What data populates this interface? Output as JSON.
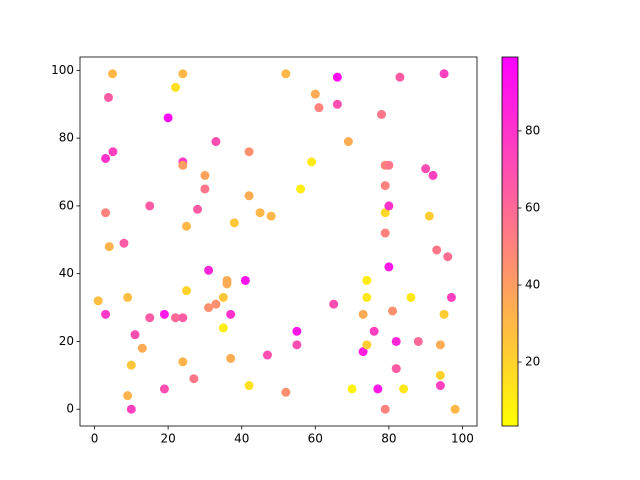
{
  "chart_data": {
    "type": "scatter",
    "x": [
      4.9,
      24,
      3.8,
      22,
      52,
      66,
      60,
      61,
      66,
      83,
      95,
      78,
      20,
      33,
      3,
      5,
      24,
      24,
      42,
      59,
      69,
      79,
      80,
      90,
      92,
      30,
      30,
      42,
      56,
      79,
      15,
      28,
      45,
      48,
      3,
      25,
      38,
      79,
      80,
      91,
      4,
      8,
      79,
      93,
      96,
      31,
      41,
      80,
      36,
      36,
      25,
      1,
      9,
      35,
      31,
      33,
      3,
      15,
      22,
      24,
      19,
      37,
      35,
      11,
      13,
      10,
      24,
      37,
      47,
      55,
      55,
      65,
      74,
      74,
      73,
      86,
      81,
      97,
      95,
      76,
      73,
      74,
      82,
      88,
      94,
      82,
      77,
      84,
      70,
      94,
      94,
      98,
      79,
      9,
      10,
      19,
      27,
      42,
      52
    ],
    "y": [
      99,
      99,
      92,
      95,
      99,
      98,
      93,
      89,
      90,
      98,
      99,
      87,
      86,
      79,
      74,
      76,
      73,
      72,
      76,
      73,
      79,
      72,
      72,
      71,
      69,
      69,
      65,
      63,
      65,
      66,
      60,
      59,
      58,
      57,
      58,
      54,
      55,
      58,
      60,
      57,
      48,
      49,
      52,
      47,
      45,
      41,
      38,
      42,
      38,
      37,
      35,
      32,
      33,
      33,
      30,
      31,
      28,
      27,
      27,
      27,
      28,
      28,
      24,
      22,
      18,
      13,
      14,
      15,
      16,
      23,
      19,
      31,
      38,
      33,
      28,
      33,
      29,
      33,
      28,
      23,
      17,
      19,
      20,
      20,
      19,
      12,
      6,
      6,
      6,
      10,
      7,
      0,
      0,
      4,
      0,
      6,
      9,
      7,
      5
    ],
    "c": [
      30,
      30,
      65,
      15,
      30,
      95,
      35,
      50,
      70,
      65,
      75,
      55,
      95,
      70,
      80,
      75,
      78,
      40,
      45,
      12,
      35,
      50,
      55,
      70,
      75,
      38,
      55,
      35,
      10,
      50,
      65,
      65,
      30,
      30,
      50,
      30,
      25,
      18,
      80,
      22,
      32,
      65,
      50,
      55,
      58,
      85,
      92,
      90,
      35,
      35,
      20,
      28,
      28,
      25,
      45,
      45,
      78,
      65,
      60,
      65,
      90,
      80,
      10,
      70,
      35,
      25,
      32,
      35,
      70,
      90,
      70,
      70,
      10,
      12,
      35,
      12,
      45,
      75,
      22,
      75,
      88,
      22,
      85,
      60,
      35,
      65,
      90,
      12,
      8,
      20,
      75,
      30,
      50,
      32,
      75,
      70,
      55,
      15,
      45
    ],
    "colormap": "spring_r",
    "clim": [
      3.4,
      99.2
    ],
    "xlim": [
      -3.95,
      103.95
    ],
    "ylim": [
      -4.95,
      103.95
    ],
    "xticks": [
      0,
      20,
      40,
      60,
      80,
      100
    ],
    "yticks": [
      0,
      20,
      40,
      60,
      80,
      100
    ],
    "cticks": [
      20,
      40,
      60,
      80
    ]
  }
}
